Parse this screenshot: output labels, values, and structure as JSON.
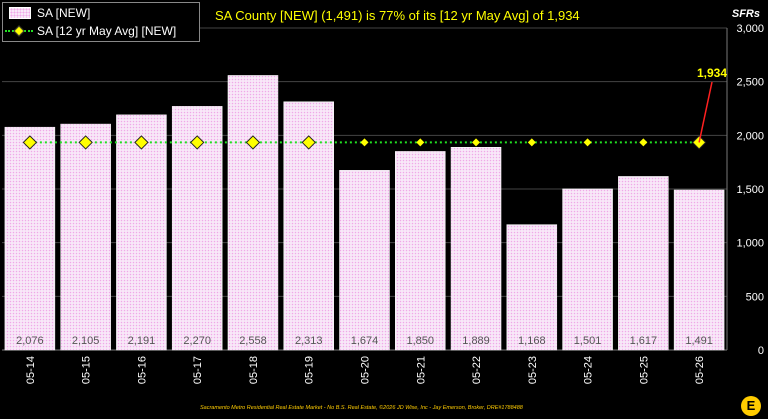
{
  "header": {
    "title": "SA County [NEW] (1,491) is 77% of its [12 yr May Avg] of 1,934",
    "unit_label": "SFRs"
  },
  "legend": {
    "bar_label": "SA [NEW]",
    "line_label": "SA [12 yr May Avg] [NEW]"
  },
  "footer": {
    "text": "Sacramento Metro Residential Real Estate Market - No B.S. Real Estate, ©2026 JD Wise, Inc - Jay Emerson, Broker, DRE#1788488",
    "logo_glyph": "E"
  },
  "colors": {
    "background": "#000000",
    "bar_fill": "#f8e8f8",
    "bar_dots": "#f0a8e8",
    "avg_line": "#22e022",
    "avg_marker": "#ffff00",
    "callout_line": "#ff2020",
    "title_text": "#ffff00"
  },
  "chart_data": {
    "type": "bar",
    "categories": [
      "05-14",
      "05-15",
      "05-16",
      "05-17",
      "05-18",
      "05-19",
      "05-20",
      "05-21",
      "05-22",
      "05-23",
      "05-24",
      "05-25",
      "05-26"
    ],
    "series": [
      {
        "name": "SA [NEW]",
        "type": "bar",
        "values": [
          2076,
          2105,
          2191,
          2270,
          2558,
          2313,
          1674,
          1850,
          1889,
          1168,
          1501,
          1617,
          1491
        ],
        "value_labels": [
          "2,076",
          "2,105",
          "2,191",
          "2,270",
          "2,558",
          "2,313",
          "1,674",
          "1,850",
          "1,889",
          "1,168",
          "1,501",
          "1,617",
          "1,491"
        ]
      },
      {
        "name": "SA [12 yr May Avg] [NEW]",
        "type": "line",
        "values": [
          1934,
          1934,
          1934,
          1934,
          1934,
          1934,
          1934,
          1934,
          1934,
          1934,
          1934,
          1934,
          1934
        ]
      }
    ],
    "highlight_markers": [
      "05-14",
      "05-15",
      "05-16",
      "05-17",
      "05-18",
      "05-19",
      "05-26"
    ],
    "callout": {
      "category": "05-26",
      "label": "1,934"
    },
    "ylim": [
      0,
      3000
    ],
    "yticks": [
      {
        "value": 0,
        "label": "0"
      },
      {
        "value": 500,
        "label": "500"
      },
      {
        "value": 1000,
        "label": "1,000"
      },
      {
        "value": 1500,
        "label": "1,500"
      },
      {
        "value": 2000,
        "label": "2,000"
      },
      {
        "value": 2500,
        "label": "2,500"
      },
      {
        "value": 3000,
        "label": "3,000"
      }
    ],
    "ylabel": "SFRs",
    "y_axis_side": "right",
    "grid": true,
    "legend_position": "top-left"
  }
}
